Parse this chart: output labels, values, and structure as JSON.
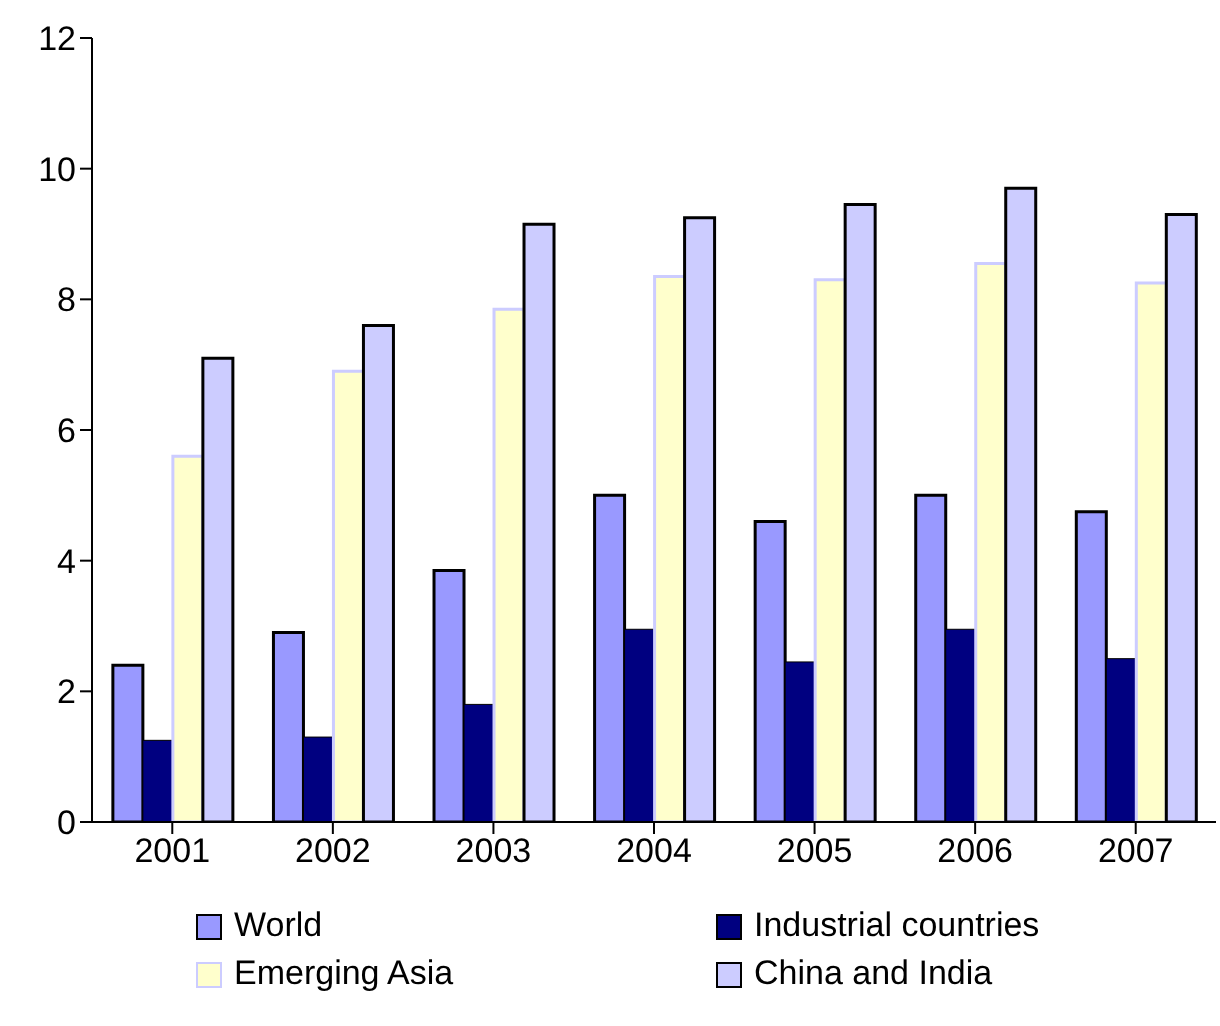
{
  "chart_data": {
    "type": "bar",
    "categories": [
      "2001",
      "2002",
      "2003",
      "2004",
      "2005",
      "2006",
      "2007"
    ],
    "series": [
      {
        "name": "World",
        "color": "#9999ff",
        "values": [
          2.4,
          2.9,
          3.85,
          5.0,
          4.6,
          5.0,
          4.75
        ]
      },
      {
        "name": "Industrial countries",
        "color": "#000080",
        "values": [
          1.25,
          1.3,
          1.8,
          2.95,
          2.45,
          2.95,
          2.5
        ]
      },
      {
        "name": "Emerging Asia",
        "color": "#ffffcc",
        "values": [
          5.6,
          6.9,
          7.85,
          8.35,
          8.3,
          8.55,
          8.25
        ]
      },
      {
        "name": "China and India",
        "color": "#ccccff",
        "values": [
          7.1,
          7.6,
          9.15,
          9.25,
          9.45,
          9.7,
          9.3
        ]
      }
    ],
    "ylim": [
      0,
      12
    ],
    "yticks": [
      0,
      2,
      4,
      6,
      8,
      10,
      12
    ],
    "grid": false,
    "legend": "bottom"
  }
}
